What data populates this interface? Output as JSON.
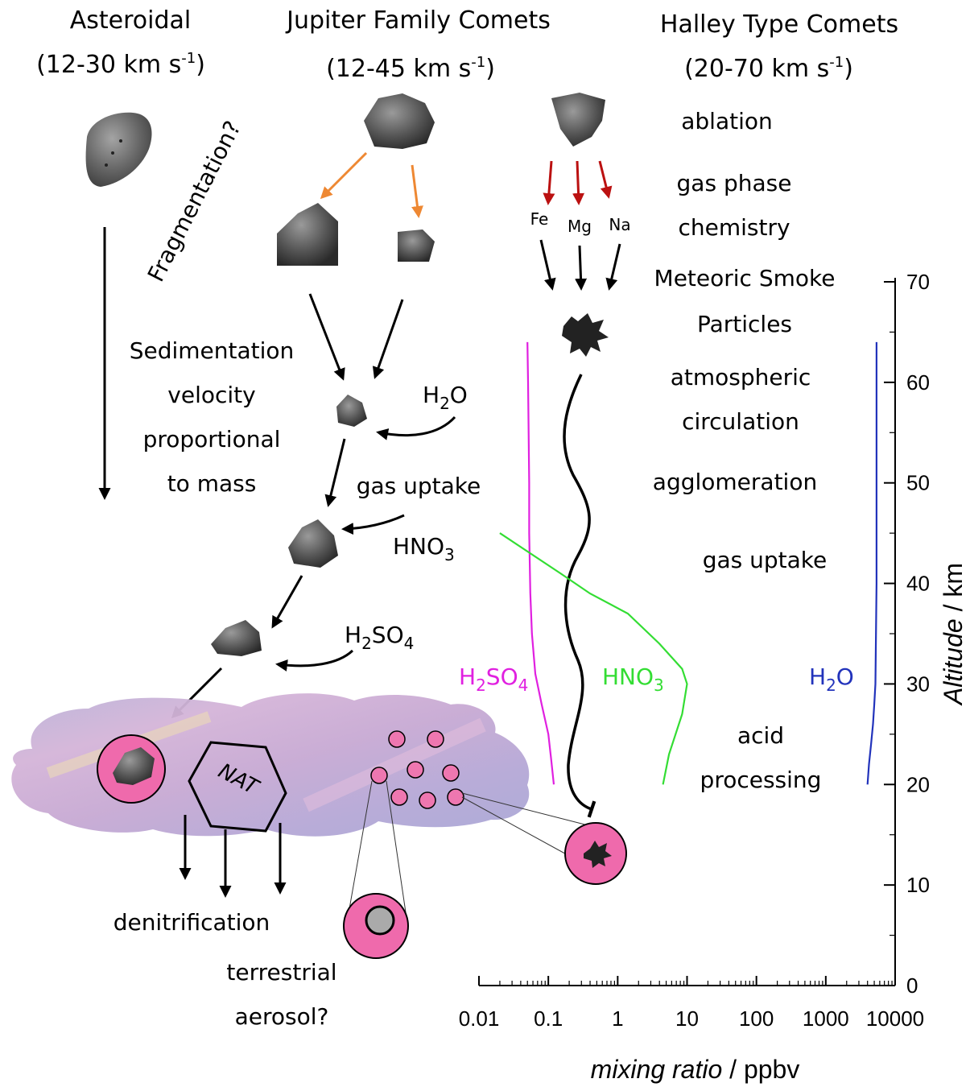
{
  "header": {
    "asteroidal": "Asteroidal",
    "asteroidal_speed": "(12-30 km s",
    "jfc": "Jupiter Family Comets",
    "jfc_speed": "(12-45 km s",
    "htc": "Halley Type Comets",
    "htc_speed": "(20-70 km s",
    "speed_exp": "-1",
    "speed_close": ")"
  },
  "left_labels": {
    "fragmentation": "Fragmentation?",
    "sed1": "Sedimentation",
    "sed2": "velocity",
    "sed3": "proportional",
    "sed4": "to mass",
    "h2o": "H",
    "gas_uptake": "gas uptake",
    "hno3": "HNO",
    "h2so4_a": "H",
    "h2so4_b": "SO",
    "nat": "NAT",
    "denitrification": "denitrification",
    "terrestrial1": "terrestrial",
    "terrestrial2": "aerosol?"
  },
  "subscripts": {
    "two": "2",
    "three": "3",
    "four": "4"
  },
  "process_labels": {
    "ablation": "ablation",
    "gas_phase1": "gas phase",
    "gas_phase2": "chemistry",
    "fe": "Fe",
    "mg": "Mg",
    "na": "Na",
    "msp1": "Meteoric Smoke",
    "msp2": "Particles",
    "circ1": "atmospheric",
    "circ2": "circulation",
    "agglomeration": "agglomeration",
    "gas_uptake": "gas uptake",
    "acid1": "acid",
    "acid2": "processing"
  },
  "chart_data": {
    "type": "line",
    "xscale": "log",
    "xlabel_italic": "mixing ratio",
    "xlabel_unit": " / ppbv",
    "ylabel_italic": "Altitude",
    "ylabel_unit": " / km",
    "xlim": [
      0.01,
      10000
    ],
    "ylim": [
      0,
      70
    ],
    "x_ticks": [
      "0.01",
      "0.1",
      "1",
      "10",
      "100",
      "1000",
      "10000"
    ],
    "x_tick_values": [
      0.01,
      0.1,
      1,
      10,
      100,
      1000,
      10000
    ],
    "y_ticks": [
      "0",
      "10",
      "20",
      "30",
      "40",
      "50",
      "60",
      "70"
    ],
    "y_tick_values": [
      0,
      10,
      20,
      30,
      40,
      50,
      60,
      70
    ],
    "series": [
      {
        "name": "H2SO4",
        "color": "#e020e0",
        "label_main": "H",
        "label_mid": "SO",
        "x": [
          0.12,
          0.11,
          0.1,
          0.08,
          0.065,
          0.058,
          0.055,
          0.054,
          0.053,
          0.053,
          0.052,
          0.051,
          0.05
        ],
        "y": [
          20,
          22.5,
          25,
          28,
          31,
          35,
          39,
          42,
          45,
          50,
          55,
          60,
          64
        ]
      },
      {
        "name": "HNO3",
        "color": "#33dd33",
        "label_main": "HNO",
        "x": [
          4.5,
          5.5,
          8.5,
          10,
          8.5,
          4,
          1.4,
          0.4,
          0.15,
          0.02
        ],
        "y": [
          20,
          23,
          27,
          30,
          31.5,
          34,
          37,
          39,
          41,
          45
        ]
      },
      {
        "name": "H2O",
        "color": "#2233bb",
        "label_main": "H",
        "label_sub2": "O",
        "x": [
          4000,
          4200,
          4500,
          4800,
          5000,
          5200,
          5300,
          5400,
          5400,
          5400
        ],
        "y": [
          20,
          22,
          24,
          26,
          28,
          30,
          35,
          40,
          50,
          64
        ]
      }
    ]
  },
  "colors": {
    "orange_arrow": "#ee8833",
    "red_arrow": "#bb1111",
    "pink_particle": "#ee77b0",
    "pink_bubble": "#ef6aac"
  }
}
